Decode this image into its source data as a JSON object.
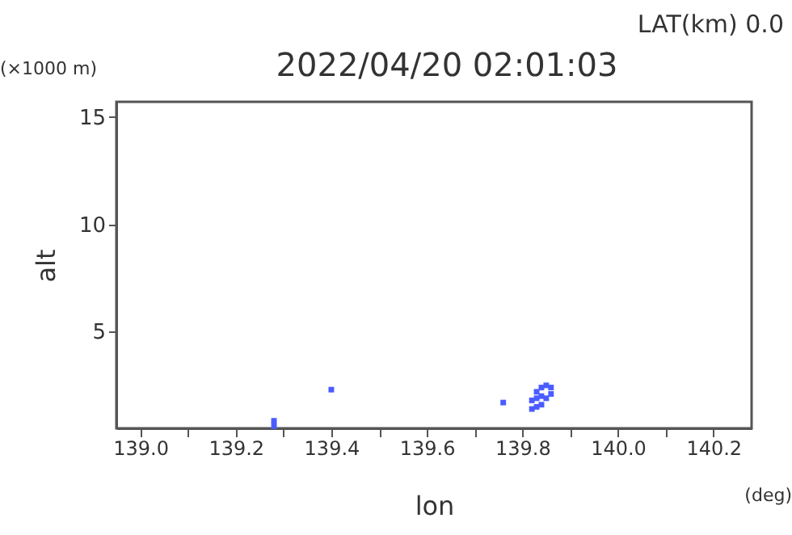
{
  "chart_data": {
    "type": "scatter",
    "title": "2022/04/20 02:01:03",
    "xlabel": "lon",
    "ylabel": "alt",
    "annotations": [
      "LAT(km) 0.0",
      "(×1000 m)",
      "(deg)"
    ],
    "x": [
      139.28,
      139.28,
      139.4,
      139.76,
      139.82,
      139.82,
      139.83,
      139.83,
      139.84,
      139.84,
      139.85,
      139.85,
      139.86,
      139.86,
      139.84,
      139.83
    ],
    "series": [
      {
        "color": "#4a5cff",
        "values": [
          0.6,
          0.85,
          2.3,
          1.7,
          1.4,
          1.8,
          1.5,
          2.2,
          1.6,
          2.4,
          1.9,
          2.5,
          2.1,
          2.4,
          2.0,
          1.9
        ]
      }
    ],
    "xlim": [
      138.95,
      140.28
    ],
    "ylim": [
      0.5,
      15.7
    ],
    "xticks": [
      {
        "value": 139.0,
        "label": "139.0"
      },
      {
        "value": 139.1,
        "label": null
      },
      {
        "value": 139.2,
        "label": "139.2"
      },
      {
        "value": 139.3,
        "label": null
      },
      {
        "value": 139.4,
        "label": "139.4"
      },
      {
        "value": 139.5,
        "label": null
      },
      {
        "value": 139.6,
        "label": "139.6"
      },
      {
        "value": 139.7,
        "label": null
      },
      {
        "value": 139.8,
        "label": "139.8"
      },
      {
        "value": 139.9,
        "label": null
      },
      {
        "value": 140.0,
        "label": "140.0"
      },
      {
        "value": 140.1,
        "label": null
      },
      {
        "value": 140.2,
        "label": "140.2"
      }
    ],
    "yticks": [
      5,
      10,
      15
    ],
    "grid": false,
    "marker": "square"
  }
}
